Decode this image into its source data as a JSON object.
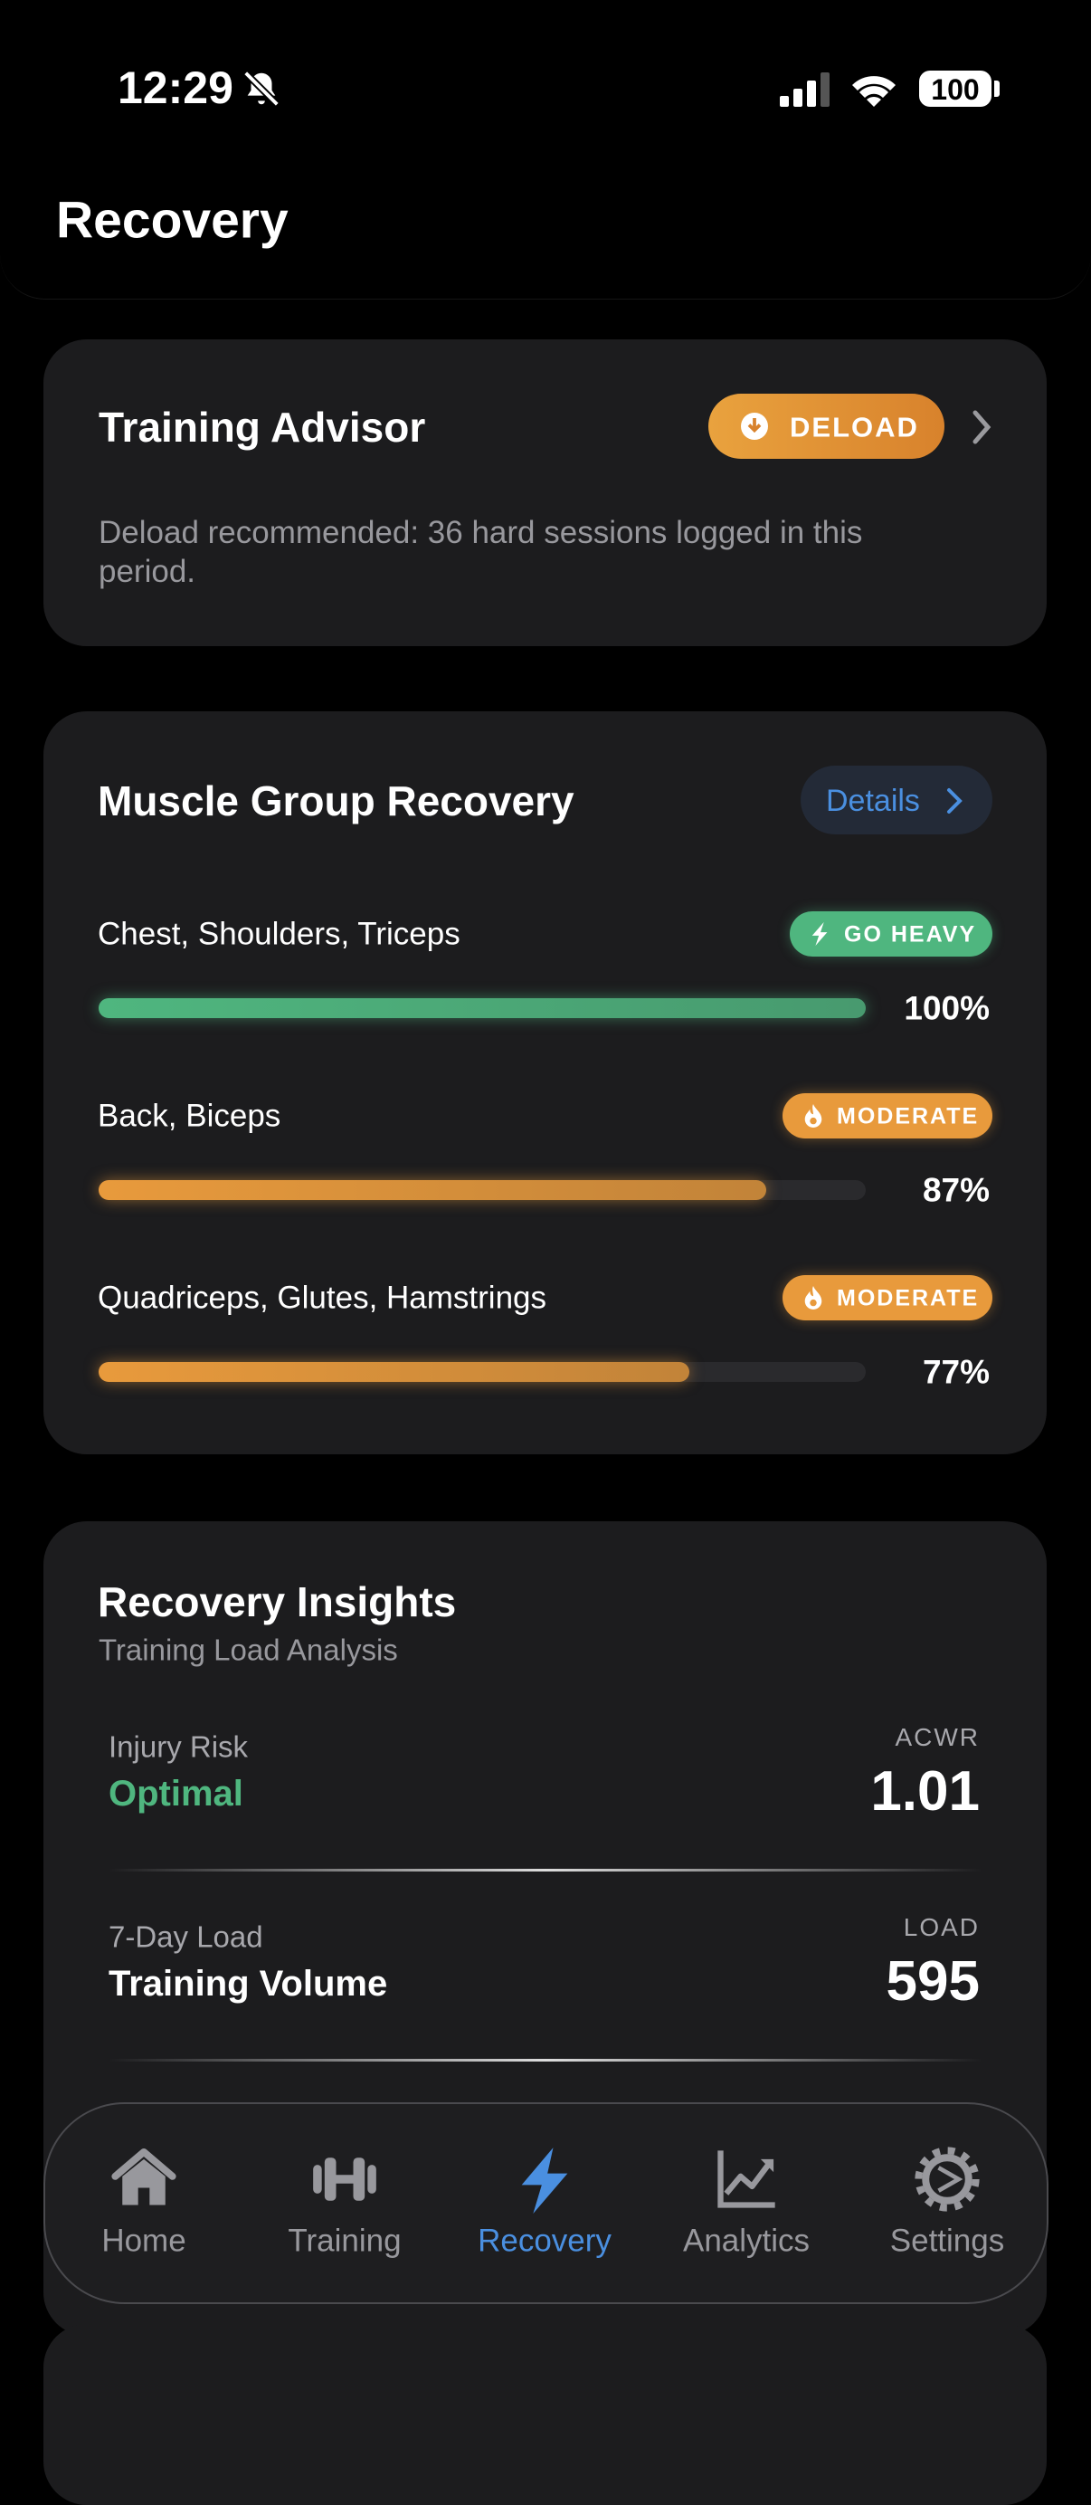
{
  "status_bar": {
    "time": "12:29",
    "battery": "100"
  },
  "header": {
    "title": "Recovery"
  },
  "advisor": {
    "title": "Training Advisor",
    "badge": "DELOAD",
    "message": "Deload recommended: 36 hard sessions logged in this period."
  },
  "muscle_recovery": {
    "title": "Muscle Group Recovery",
    "action": "Details",
    "groups": [
      {
        "name": "Chest, Shoulders, Triceps",
        "status": "GO HEAVY",
        "value": 100,
        "value_label": "100%",
        "color": "#4fb67f"
      },
      {
        "name": "Back, Biceps",
        "status": "MODERATE",
        "value": 87,
        "value_label": "87%",
        "color": "#e89a3c"
      },
      {
        "name": "Quadriceps, Glutes, Hamstrings",
        "status": "MODERATE",
        "value": 77,
        "value_label": "77%",
        "color": "#e89a3c"
      }
    ]
  },
  "insights": {
    "title": "Recovery Insights",
    "subtitle": "Training Load Analysis",
    "items": [
      {
        "label": "Injury Risk",
        "status": "Optimal",
        "status_color": "#4fb67f",
        "metric": "ACWR",
        "value": "1.01"
      },
      {
        "label": "7-Day Load",
        "status": "Training Volume",
        "status_color": "#ffffff",
        "metric": "LOAD",
        "value": "595"
      }
    ]
  },
  "tab_bar": {
    "items": [
      {
        "label": "Home",
        "active": false
      },
      {
        "label": "Training",
        "active": false
      },
      {
        "label": "Recovery",
        "active": true
      },
      {
        "label": "Analytics",
        "active": false
      },
      {
        "label": "Settings",
        "active": false
      }
    ]
  }
}
